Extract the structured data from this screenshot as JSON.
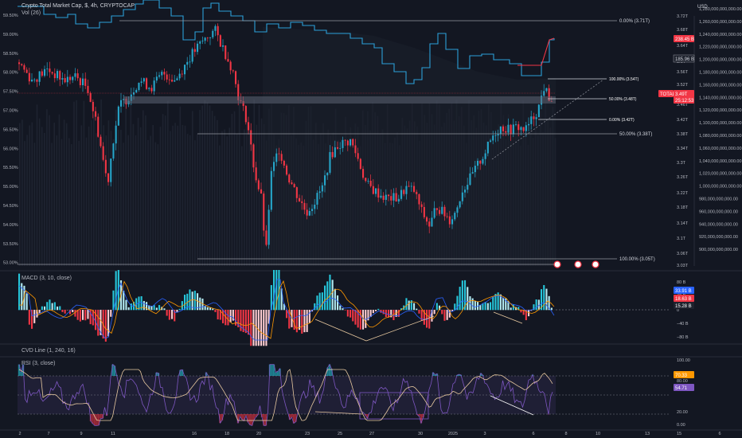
{
  "header": {
    "symbol_line": "Crypto Total Market Cap, $, 4h, CRYPTOCAP",
    "vol_label": "Vol (26)"
  },
  "axes": {
    "left_ticks": [
      "59.50%",
      "59.00%",
      "58.50%",
      "58.00%",
      "57.50%",
      "57.00%",
      "56.50%",
      "56.00%",
      "55.50%",
      "55.00%",
      "54.50%",
      "54.00%",
      "53.50%",
      "53.00%"
    ],
    "price_ticks": [
      "3.72T",
      "3.68T",
      "3.64T",
      "3.6T",
      "3.56T",
      "3.52T",
      "3.48T",
      "3.46T",
      "3.42T",
      "3.38T",
      "3.34T",
      "3.3T",
      "3.26T",
      "3.22T",
      "3.18T",
      "3.14T",
      "3.1T",
      "3.06T",
      "3.03T"
    ],
    "usd_label": "USD",
    "right_ticks": [
      "1,280,000,000,000.00",
      "1,260,000,000,000.00",
      "1,240,000,000,000.00",
      "1,220,000,000,000.00",
      "1,200,000,000,000.00",
      "1,180,000,000,000.00",
      "1,160,000,000,000.00",
      "1,140,000,000,000.00",
      "1,120,000,000,000.00",
      "1,100,000,000,000.00",
      "1,080,000,000,000.00",
      "1,060,000,000,000.00",
      "1,040,000,000,000.00",
      "1,020,000,000,000.00",
      "1,000,000,000,000.00",
      "980,000,000,000.00",
      "960,000,000,000.00",
      "940,000,000,000.00",
      "920,000,000,000.00",
      "900,000,000,000.00"
    ],
    "x_ticks": [
      "2",
      "7",
      "9",
      "11",
      "16",
      "18",
      "20",
      "23",
      "25",
      "27",
      "30",
      "2025",
      "3",
      "6",
      "8",
      "10",
      "13",
      "15",
      "6"
    ]
  },
  "badges": {
    "b1": "238.45 B",
    "b2": "185.96 B",
    "total_name": "TOTAL",
    "total_value": "3.49T",
    "total_sub": "25:12:53"
  },
  "fib": {
    "top_left": "0.00% (3.71T)",
    "mid_left": "50.00% (3.38T)",
    "bottom_left": "100.00% (3.05T)",
    "r100": "100.00% (3.54T)",
    "r50": "50.00% (3.48T)",
    "r0": "0.00% (3.42T)"
  },
  "macd": {
    "label": "MACD (3, 10, close)",
    "ticks": [
      "80 B",
      "40 B",
      "0",
      "−40 B",
      "−80 B"
    ],
    "badges": [
      "33.91 B",
      "18.63 B",
      "15.28 B"
    ]
  },
  "cvd": {
    "label": "CVD Line (1, 240, 16)",
    "ticks": [
      "100.00",
      "80.00",
      "20.00",
      "0.00"
    ]
  },
  "rsi": {
    "label": "RSI (3, close)",
    "badges": [
      "70.33",
      "54.71"
    ]
  },
  "colors": {
    "background": "#131722",
    "bull": "#26a5c9",
    "bear": "#f23645",
    "macd_signal": "#ff9800",
    "rsi_line": "#7e57c2"
  },
  "chart_data": {
    "type": "candlestick",
    "price_range": [
      3.03,
      3.73
    ],
    "fib_levels": [
      {
        "label": "0.00%",
        "value": 3.71
      },
      {
        "label": "50.00%",
        "value": 3.38
      },
      {
        "label": "100.00%",
        "value": 3.05
      },
      {
        "label": "100.00%",
        "value": 3.54
      },
      {
        "label": "50.00%",
        "value": 3.48
      },
      {
        "label": "0.00%",
        "value": 3.42
      }
    ],
    "dominance_range": [
      53.0,
      59.5
    ],
    "macd_range": [
      -80,
      80
    ],
    "rsi_levels": [
      20,
      80
    ]
  }
}
